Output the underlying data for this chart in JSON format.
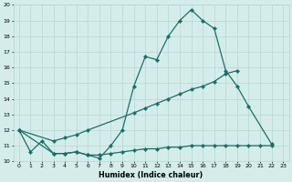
{
  "xlabel": "Humidex (Indice chaleur)",
  "xlim": [
    -0.5,
    23.5
  ],
  "ylim": [
    10.0,
    20.0
  ],
  "yticks": [
    10,
    11,
    12,
    13,
    14,
    15,
    16,
    17,
    18,
    19,
    20
  ],
  "xticks": [
    0,
    1,
    2,
    3,
    4,
    5,
    6,
    7,
    8,
    9,
    10,
    11,
    12,
    13,
    14,
    15,
    16,
    17,
    18,
    19,
    20,
    21,
    22,
    23
  ],
  "bg_color": "#d5edea",
  "grid_color": "#b5d5d2",
  "line_color": "#1a6e6a",
  "curve1_x": [
    0,
    1,
    2,
    3,
    4,
    5,
    6,
    7,
    8,
    9,
    10,
    11,
    12,
    13,
    14,
    15,
    16,
    17,
    18,
    19,
    20,
    22
  ],
  "curve1_y": [
    12.0,
    10.6,
    11.3,
    10.5,
    10.5,
    10.6,
    10.4,
    10.2,
    11.0,
    12.0,
    14.8,
    16.7,
    16.5,
    18.0,
    19.0,
    19.7,
    19.0,
    18.5,
    15.8,
    14.8,
    13.5,
    11.1
  ],
  "curve2_x": [
    0,
    3,
    4,
    5,
    6,
    10,
    11,
    12,
    13,
    14,
    15,
    16,
    17,
    18,
    19
  ],
  "curve2_y": [
    12.0,
    11.3,
    11.5,
    11.7,
    12.0,
    13.1,
    13.4,
    13.7,
    14.0,
    14.3,
    14.6,
    14.8,
    15.1,
    15.6,
    15.8
  ],
  "curve3_x": [
    0,
    3,
    4,
    5,
    6,
    7,
    8,
    9,
    10,
    11,
    12,
    13,
    14,
    15,
    16,
    17,
    18,
    19,
    20,
    21,
    22
  ],
  "curve3_y": [
    12.0,
    10.5,
    10.5,
    10.6,
    10.4,
    10.4,
    10.5,
    10.6,
    10.7,
    10.8,
    10.8,
    10.9,
    10.9,
    11.0,
    11.0,
    11.0,
    11.0,
    11.0,
    11.0,
    11.0,
    11.0
  ]
}
